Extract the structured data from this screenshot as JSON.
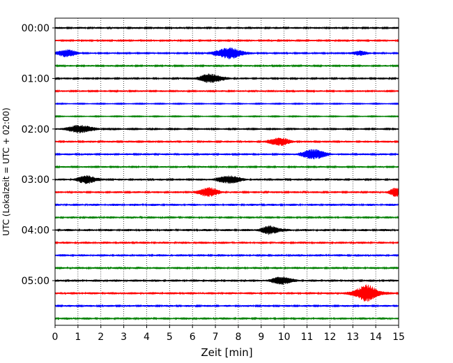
{
  "chart_data": {
    "type": "line",
    "xlabel": "Zeit  [min]",
    "ylabel": "UTC (Lokalzeit = UTC + 02:00)",
    "xlim": [
      0,
      15
    ],
    "x_ticks": [
      "0",
      "1",
      "2",
      "3",
      "4",
      "5",
      "6",
      "7",
      "8",
      "9",
      "10",
      "11",
      "12",
      "13",
      "14",
      "15"
    ],
    "grid": "vertical dotted",
    "rows_per_hour": 4,
    "hour_labels": [
      {
        "label": "00:00",
        "row": 0
      },
      {
        "label": "01:00",
        "row": 4
      },
      {
        "label": "02:00",
        "row": 8
      },
      {
        "label": "03:00",
        "row": 12
      },
      {
        "label": "04:00",
        "row": 16
      },
      {
        "label": "05:00",
        "row": 20
      }
    ],
    "colors": [
      "#000000",
      "#ff0000",
      "#0000ff",
      "#008000"
    ],
    "traces": [
      {
        "row": 0,
        "color": "#000000",
        "noise": 0.35,
        "events": []
      },
      {
        "row": 1,
        "color": "#ff0000",
        "noise": 0.25,
        "events": []
      },
      {
        "row": 2,
        "color": "#0000ff",
        "noise": 0.25,
        "events": [
          {
            "t": 0.5,
            "amp": 1.3,
            "width": 0.4
          },
          {
            "t": 7.6,
            "amp": 1.8,
            "width": 0.6
          },
          {
            "t": 13.3,
            "amp": 0.8,
            "width": 0.3
          }
        ]
      },
      {
        "row": 3,
        "color": "#008000",
        "noise": 0.3,
        "events": []
      },
      {
        "row": 4,
        "color": "#000000",
        "noise": 0.35,
        "events": [
          {
            "t": 6.8,
            "amp": 1.4,
            "width": 0.5
          }
        ]
      },
      {
        "row": 5,
        "color": "#ff0000",
        "noise": 0.3,
        "events": []
      },
      {
        "row": 6,
        "color": "#0000ff",
        "noise": 0.15,
        "events": []
      },
      {
        "row": 7,
        "color": "#008000",
        "noise": 0.15,
        "events": []
      },
      {
        "row": 8,
        "color": "#000000",
        "noise": 0.2,
        "events": [
          {
            "t": 1.1,
            "amp": 1.3,
            "width": 0.6
          }
        ]
      },
      {
        "row": 9,
        "color": "#ff0000",
        "noise": 0.35,
        "events": [
          {
            "t": 9.8,
            "amp": 1.3,
            "width": 0.4
          }
        ]
      },
      {
        "row": 10,
        "color": "#0000ff",
        "noise": 0.35,
        "events": [
          {
            "t": 11.3,
            "amp": 1.6,
            "width": 0.5
          }
        ]
      },
      {
        "row": 11,
        "color": "#008000",
        "noise": 0.3,
        "events": []
      },
      {
        "row": 12,
        "color": "#000000",
        "noise": 0.35,
        "events": [
          {
            "t": 1.4,
            "amp": 1.3,
            "width": 0.4
          },
          {
            "t": 7.6,
            "amp": 1.2,
            "width": 0.5
          }
        ]
      },
      {
        "row": 13,
        "color": "#ff0000",
        "noise": 0.35,
        "events": [
          {
            "t": 6.7,
            "amp": 1.5,
            "width": 0.4
          },
          {
            "t": 14.9,
            "amp": 1.4,
            "width": 0.3
          }
        ]
      },
      {
        "row": 14,
        "color": "#0000ff",
        "noise": 0.4,
        "events": []
      },
      {
        "row": 15,
        "color": "#008000",
        "noise": 0.4,
        "events": []
      },
      {
        "row": 16,
        "color": "#000000",
        "noise": 0.4,
        "events": [
          {
            "t": 9.4,
            "amp": 1.3,
            "width": 0.4
          }
        ]
      },
      {
        "row": 17,
        "color": "#ff0000",
        "noise": 0.4,
        "events": []
      },
      {
        "row": 18,
        "color": "#0000ff",
        "noise": 0.4,
        "events": []
      },
      {
        "row": 19,
        "color": "#008000",
        "noise": 0.4,
        "events": []
      },
      {
        "row": 20,
        "color": "#000000",
        "noise": 0.4,
        "events": [
          {
            "t": 9.9,
            "amp": 1.2,
            "width": 0.4
          }
        ]
      },
      {
        "row": 21,
        "color": "#ff0000",
        "noise": 0.4,
        "events": [
          {
            "t": 13.6,
            "amp": 2.6,
            "width": 0.5
          }
        ]
      },
      {
        "row": 22,
        "color": "#0000ff",
        "noise": 0.35,
        "events": []
      },
      {
        "row": 23,
        "color": "#008000",
        "noise": 0.4,
        "events": []
      }
    ]
  }
}
